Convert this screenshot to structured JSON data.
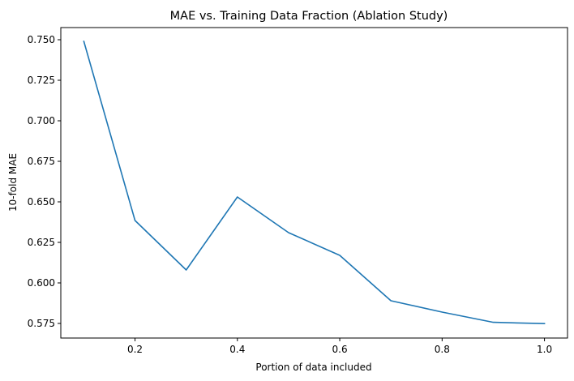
{
  "chart_data": {
    "type": "line",
    "title": "MAE vs. Training Data Fraction (Ablation Study)",
    "xlabel": "Portion of data included",
    "ylabel": "10-fold MAE",
    "xlim": [
      0.055,
      1.045
    ],
    "ylim": [
      0.566,
      0.7575
    ],
    "x_ticks": [
      0.2,
      0.4,
      0.6,
      0.8,
      1.0
    ],
    "x_tick_labels": [
      "0.2",
      "0.4",
      "0.6",
      "0.8",
      "1.0"
    ],
    "y_ticks": [
      0.575,
      0.6,
      0.625,
      0.65,
      0.675,
      0.7,
      0.725,
      0.75
    ],
    "y_tick_labels": [
      "0.575",
      "0.600",
      "0.625",
      "0.650",
      "0.675",
      "0.700",
      "0.725",
      "0.750"
    ],
    "grid": false,
    "series": [
      {
        "color": "#1f77b4",
        "x": [
          0.1,
          0.2,
          0.3,
          0.4,
          0.5,
          0.6,
          0.7,
          0.8,
          0.9,
          1.0
        ],
        "y": [
          0.749,
          0.6385,
          0.608,
          0.653,
          0.631,
          0.617,
          0.589,
          0.582,
          0.5757,
          0.5749
        ]
      }
    ]
  }
}
